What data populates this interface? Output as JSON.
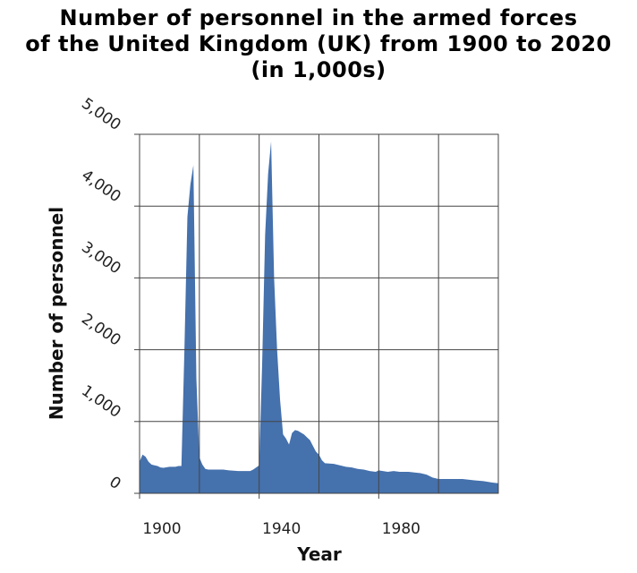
{
  "chart_data": {
    "type": "area",
    "title": "Number of personnel in the armed forces\nof the United Kingdom (UK) from 1900 to 2020\n(in 1,000s)",
    "xlabel": "Year",
    "ylabel": "Number of personnel",
    "xlim": [
      1900,
      2020
    ],
    "ylim": [
      0,
      5000
    ],
    "x_ticks": [
      1900,
      1940,
      1980
    ],
    "x_tick_labels": [
      "1900",
      "1940",
      "1980"
    ],
    "x_grid": [
      1900,
      1920,
      1940,
      1960,
      1980,
      2000,
      2020
    ],
    "y_ticks": [
      0,
      1000,
      2000,
      3000,
      4000,
      5000
    ],
    "y_tick_labels": [
      "0",
      "1,000",
      "2,000",
      "3,000",
      "4,000",
      "5,000"
    ],
    "grid": true,
    "fill_color": "#4571ad",
    "series": [
      {
        "x": [
          1900,
          1901,
          1902,
          1903,
          1904,
          1905,
          1906,
          1907,
          1908,
          1910,
          1912,
          1913,
          1914,
          1915,
          1916,
          1917,
          1918,
          1919,
          1920,
          1921,
          1922,
          1923,
          1925,
          1928,
          1930,
          1933,
          1935,
          1937,
          1938,
          1939,
          1940,
          1941,
          1942,
          1943,
          1944,
          1945,
          1946,
          1947,
          1948,
          1949,
          1950,
          1951,
          1952,
          1953,
          1955,
          1956,
          1957,
          1958,
          1959,
          1960,
          1961,
          1962,
          1965,
          1967,
          1969,
          1971,
          1973,
          1975,
          1977,
          1979,
          1980,
          1983,
          1985,
          1987,
          1990,
          1992,
          1994,
          1996,
          1998,
          2000,
          2003,
          2005,
          2008,
          2010,
          2012,
          2015,
          2018,
          2020
        ],
        "y": [
          440,
          540,
          510,
          440,
          400,
          390,
          380,
          360,
          355,
          370,
          370,
          380,
          380,
          2000,
          3850,
          4300,
          4570,
          1600,
          500,
          400,
          340,
          330,
          330,
          330,
          320,
          310,
          310,
          310,
          330,
          360,
          390,
          1800,
          3600,
          4450,
          4900,
          3000,
          2000,
          1300,
          820,
          760,
          680,
          840,
          880,
          870,
          820,
          780,
          740,
          660,
          580,
          540,
          460,
          420,
          410,
          390,
          370,
          360,
          340,
          330,
          310,
          300,
          320,
          300,
          310,
          300,
          300,
          290,
          280,
          260,
          220,
          200,
          200,
          200,
          200,
          190,
          180,
          170,
          150,
          140
        ]
      }
    ]
  }
}
